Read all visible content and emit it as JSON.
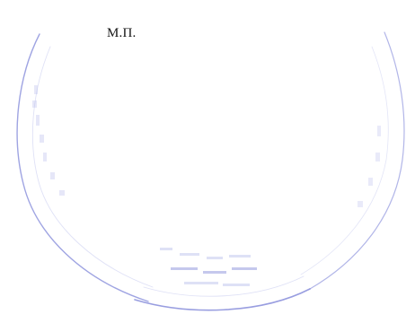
{
  "document": {
    "seal_place_label": "М.П."
  },
  "stamp": {
    "ink_color": "#7f86d8",
    "faint_ink_color": "#b8bdec"
  }
}
